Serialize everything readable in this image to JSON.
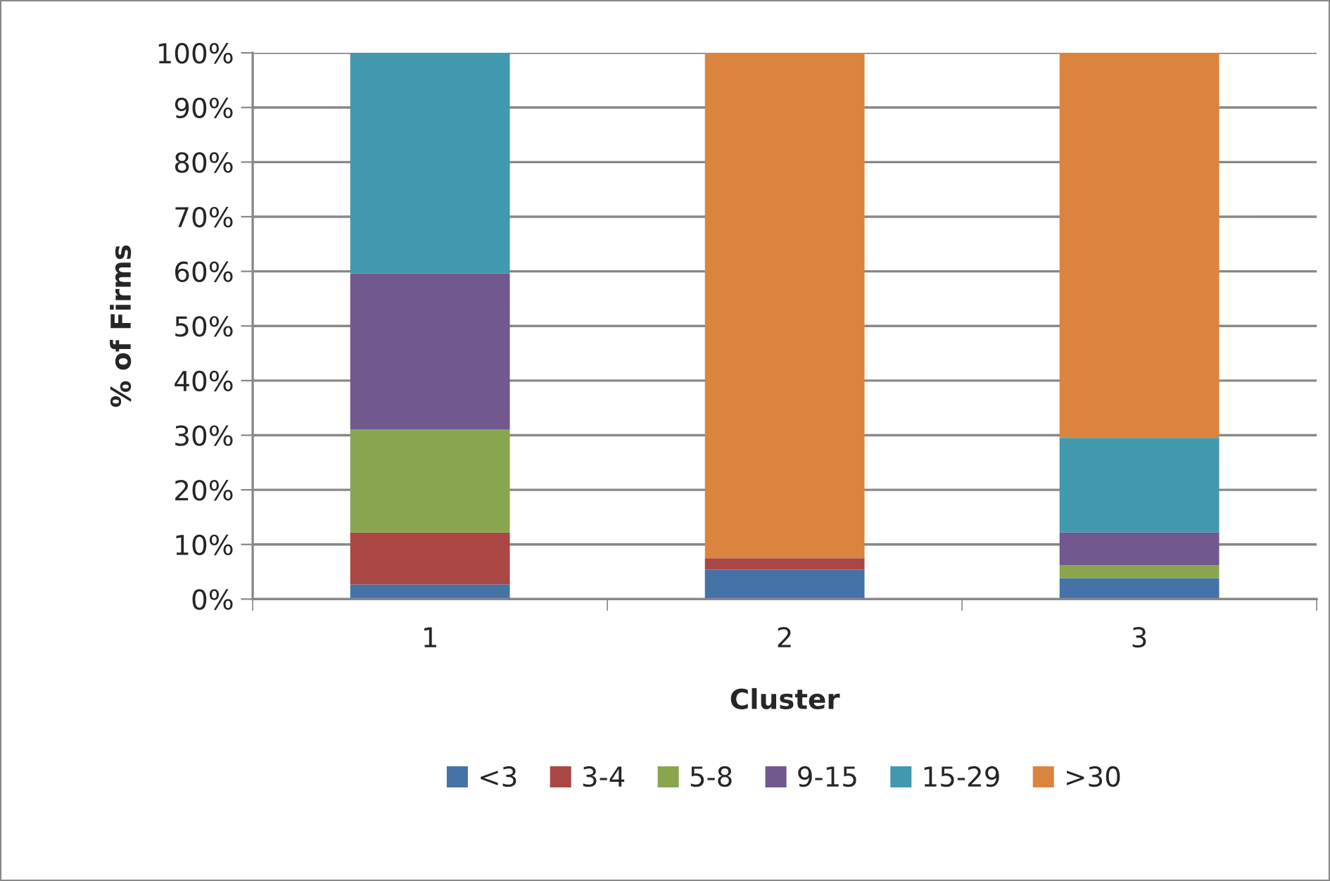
{
  "chart_data": {
    "type": "bar",
    "stacked": true,
    "xlabel": "Cluster",
    "ylabel": "% of Firms",
    "categories": [
      "1",
      "2",
      "3"
    ],
    "series": [
      {
        "name": "<3",
        "color": "#4572a7",
        "values": [
          2.7,
          5.4,
          3.8
        ]
      },
      {
        "name": "3-4",
        "color": "#aa4643",
        "values": [
          9.5,
          2.1,
          null
        ]
      },
      {
        "name": "5-8",
        "color": "#89a54e",
        "values": [
          18.9,
          null,
          2.4
        ]
      },
      {
        "name": "9-15",
        "color": "#71588f",
        "values": [
          28.5,
          null,
          6.0
        ]
      },
      {
        "name": "15-29",
        "color": "#4198af",
        "values": [
          40.4,
          null,
          17.3
        ]
      },
      {
        "name": ">30",
        "color": "#db843d",
        "values": [
          null,
          92.5,
          70.5
        ]
      }
    ],
    "ylim": [
      0,
      100
    ],
    "yticks": [
      {
        "value": 0,
        "label": "0%"
      },
      {
        "value": 10,
        "label": "10%"
      },
      {
        "value": 20,
        "label": "20%"
      },
      {
        "value": 30,
        "label": "30%"
      },
      {
        "value": 40,
        "label": "40%"
      },
      {
        "value": 50,
        "label": "50%"
      },
      {
        "value": 60,
        "label": "60%"
      },
      {
        "value": 70,
        "label": "70%"
      },
      {
        "value": 80,
        "label": "80%"
      },
      {
        "value": 90,
        "label": "90%"
      },
      {
        "value": 100,
        "label": "100%"
      }
    ],
    "grid": "y",
    "legend": "bottom"
  }
}
